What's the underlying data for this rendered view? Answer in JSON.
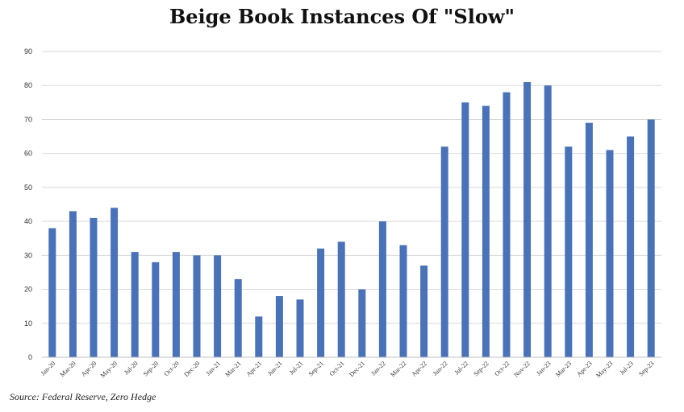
{
  "chart_data": {
    "type": "bar",
    "title": "Beige Book Instances Of  \"Slow\"",
    "source": "Source: Federal Reserve, Zero Hedge",
    "xlabel": "",
    "ylabel": "",
    "ylim": [
      0,
      90
    ],
    "yticks": [
      0,
      10,
      20,
      30,
      40,
      50,
      60,
      70,
      80,
      90
    ],
    "grid": true,
    "categories": [
      "Jan-20",
      "Mar-20",
      "Apr-20",
      "May-20",
      "Jul-20",
      "Sep-20",
      "Oct-20",
      "Dec-20",
      "Jan-21",
      "Mar-21",
      "Apr-21",
      "Jun-21",
      "Jul-21",
      "Sep-21",
      "Oct-21",
      "Dec-21",
      "Jan-22",
      "Mar-22",
      "Apr-22",
      "Jun-22",
      "Jul-22",
      "Sep-22",
      "Oct-22",
      "Nov-22",
      "Jan-23",
      "Mar-23",
      "Apr-23",
      "May-23",
      "Jul-23",
      "Sep-23"
    ],
    "values": [
      38,
      43,
      41,
      44,
      31,
      28,
      31,
      30,
      30,
      23,
      12,
      18,
      17,
      32,
      34,
      20,
      40,
      33,
      27,
      62,
      75,
      74,
      78,
      81,
      80,
      62,
      69,
      61,
      65,
      70
    ],
    "bar_color": "#4a72b8",
    "grid_color": "#d9d9d9",
    "axis_color": "#bfbfbf"
  }
}
